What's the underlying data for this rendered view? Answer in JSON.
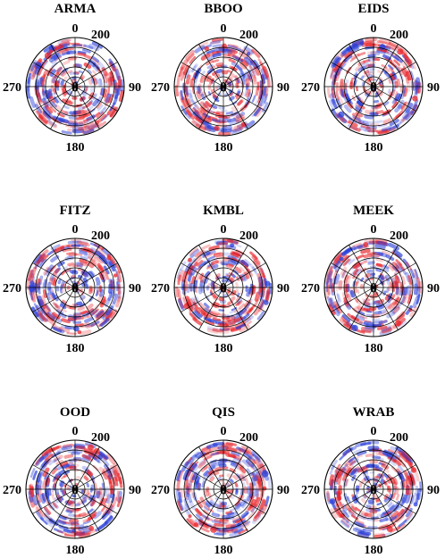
{
  "chart_data": {
    "type": "polar-residual-skyplot-grid",
    "layout": {
      "rows": 3,
      "cols": 3
    },
    "direction_labels": {
      "north": "0",
      "east": "90",
      "south": "180",
      "west": "270"
    },
    "ring_label": "200",
    "center_label": "0",
    "colors": {
      "positive": "#e8252b",
      "negative": "#2a3fd8",
      "grid": "#000000"
    },
    "panels": [
      {
        "title": "ARMA"
      },
      {
        "title": "BBOO"
      },
      {
        "title": "EIDS"
      },
      {
        "title": "FITZ"
      },
      {
        "title": "KMBL"
      },
      {
        "title": "MEEK"
      },
      {
        "title": "OOD"
      },
      {
        "title": "QIS"
      },
      {
        "title": "WRAB"
      }
    ]
  }
}
